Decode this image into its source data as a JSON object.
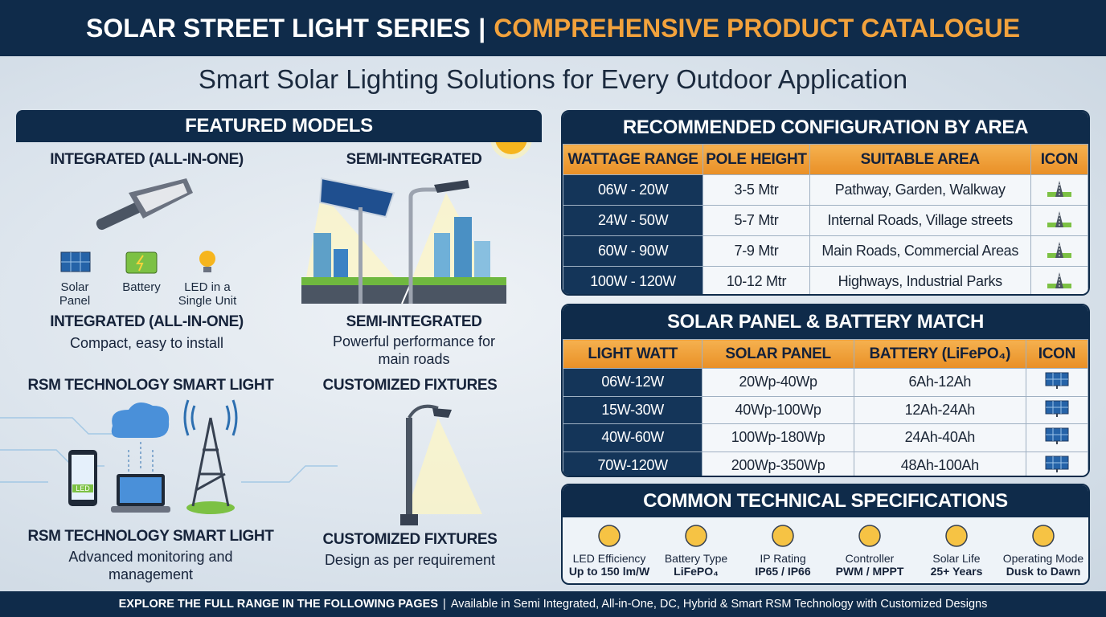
{
  "header": {
    "title_left": "SOLAR STREET LIGHT SERIES",
    "separator": "|",
    "title_right": "COMPREHENSIVE PRODUCT CATALOGUE"
  },
  "subtitle": "Smart Solar Lighting Solutions for Every Outdoor Application",
  "featured": {
    "title": "FEATURED MODELS",
    "integrated": {
      "heading": "INTEGRATED (ALL-IN-ONE)",
      "icons": [
        "Solar Panel",
        "Battery",
        "LED in a Single Unit"
      ],
      "name": "INTEGRATED (ALL-IN-ONE)",
      "description": "Compact, easy to install"
    },
    "semi": {
      "heading": "SEMI-INTEGRATED",
      "name": "SEMI-INTEGRATED",
      "description": "Powerful performance for main roads"
    },
    "rsm": {
      "heading": "RSM TECHNOLOGY SMART LIGHT",
      "phone_label": "LED",
      "name": "RSM TECHNOLOGY SMART LIGHT",
      "description": "Advanced monitoring and management"
    },
    "custom": {
      "heading": "CUSTOMIZED FIXTURES",
      "name": "CUSTOMIZED FIXTURES",
      "description": "Design as per requirement"
    }
  },
  "configuration": {
    "title": "RECOMMENDED CONFIGURATION BY AREA",
    "headers": [
      "WATTAGE RANGE",
      "POLE HEIGHT",
      "SUITABLE AREA",
      "ICON"
    ],
    "rows": [
      [
        "06W - 20W",
        "3-5 Mtr",
        "Pathway, Garden, Walkway"
      ],
      [
        "24W - 50W",
        "5-7 Mtr",
        "Internal Roads, Village streets"
      ],
      [
        "60W - 90W",
        "7-9 Mtr",
        "Main Roads, Commercial Areas"
      ],
      [
        "100W - 120W",
        "10-12 Mtr",
        "Highways, Industrial Parks"
      ]
    ]
  },
  "battery_match": {
    "title": "SOLAR PANEL & BATTERY MATCH",
    "headers": [
      "LIGHT WATT",
      "SOLAR PANEL",
      "BATTERY (LiFePO₄)",
      "ICON"
    ],
    "rows": [
      [
        "06W-12W",
        "20Wp-40Wp",
        "6Ah-12Ah"
      ],
      [
        "15W-30W",
        "40Wp-100Wp",
        "12Ah-24Ah"
      ],
      [
        "40W-60W",
        "100Wp-180Wp",
        "24Ah-40Ah"
      ],
      [
        "70W-120W",
        "200Wp-350Wp",
        "48Ah-100Ah"
      ]
    ]
  },
  "specifications": {
    "title": "COMMON TECHNICAL SPECIFICATIONS",
    "items": [
      {
        "label": "LED Efficiency",
        "value": "Up to 150 lm/W"
      },
      {
        "label": "Battery Type",
        "value": "LiFePO₄"
      },
      {
        "label": "IP Rating",
        "value": "IP65 / IP66"
      },
      {
        "label": "Controller",
        "value": "PWM / MPPT"
      },
      {
        "label": "Solar Life",
        "value": "25+ Years"
      },
      {
        "label": "Operating Mode",
        "value": "Dusk to Dawn"
      }
    ]
  },
  "footer": {
    "emphasis": "EXPLORE THE FULL RANGE IN THE FOLLOWING PAGES",
    "separator": "|",
    "text": "Available in Semi Integrated, All-in-One, DC, Hybrid & Smart RSM Technology with Customized Designs"
  }
}
